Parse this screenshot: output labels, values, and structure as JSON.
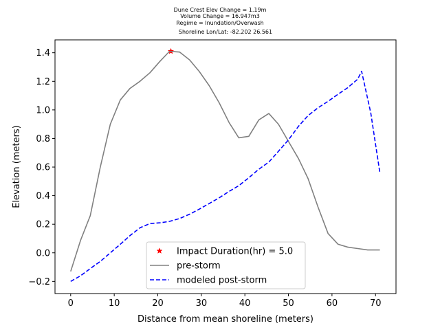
{
  "chart_data": {
    "type": "line",
    "title_lines": [
      "Dune Crest Elev Change = 1.19m",
      "Volume Change = 16.947m3",
      "Regime = Inundation/Overwash",
      "Shoreline Lon/Lat: -82.202 26.561"
    ],
    "xlabel": "Distance from mean shoreline (meters)",
    "ylabel": "Elevation (meters)",
    "xlim": [
      -3.6,
      74.7
    ],
    "ylim": [
      -0.285,
      1.49
    ],
    "xticks": [
      0,
      10,
      20,
      30,
      40,
      50,
      60,
      70
    ],
    "xtick_labels": [
      "0",
      "10",
      "20",
      "30",
      "40",
      "50",
      "60",
      "70"
    ],
    "yticks": [
      -0.2,
      0.0,
      0.2,
      0.4,
      0.6,
      0.8,
      1.0,
      1.2,
      1.4
    ],
    "ytick_labels": [
      "−0.2",
      "0.0",
      "0.2",
      "0.4",
      "0.6",
      "0.8",
      "1.0",
      "1.2",
      "1.4"
    ],
    "grid": false,
    "legend_position": "lower-center",
    "series": [
      {
        "name": "Impact Duration(hr) = 5.0",
        "style": "marker",
        "marker": "star",
        "color": "#ff0000",
        "points": [
          [
            23.0,
            1.41
          ]
        ]
      },
      {
        "name": "pre-storm",
        "style": "solid",
        "color": "#808080",
        "points": [
          [
            0.0,
            -0.13
          ],
          [
            2.3,
            0.09
          ],
          [
            4.5,
            0.26
          ],
          [
            6.8,
            0.6
          ],
          [
            9.1,
            0.9
          ],
          [
            11.4,
            1.07
          ],
          [
            13.6,
            1.15
          ],
          [
            15.9,
            1.2
          ],
          [
            18.2,
            1.26
          ],
          [
            20.5,
            1.34
          ],
          [
            22.7,
            1.41
          ],
          [
            25.0,
            1.405
          ],
          [
            27.3,
            1.35
          ],
          [
            29.5,
            1.27
          ],
          [
            31.8,
            1.17
          ],
          [
            34.1,
            1.05
          ],
          [
            36.4,
            0.91
          ],
          [
            38.6,
            0.805
          ],
          [
            40.9,
            0.815
          ],
          [
            43.2,
            0.93
          ],
          [
            45.5,
            0.975
          ],
          [
            47.7,
            0.9
          ],
          [
            50.0,
            0.78
          ],
          [
            52.3,
            0.66
          ],
          [
            54.5,
            0.52
          ],
          [
            56.8,
            0.32
          ],
          [
            59.1,
            0.135
          ],
          [
            61.4,
            0.06
          ],
          [
            63.6,
            0.04
          ],
          [
            65.9,
            0.03
          ],
          [
            68.2,
            0.02
          ],
          [
            70.5,
            0.02
          ],
          [
            71.0,
            0.02
          ]
        ]
      },
      {
        "name": "modeled post-storm",
        "style": "dashed",
        "color": "#0000ff",
        "points": [
          [
            0.0,
            -0.2
          ],
          [
            2.3,
            -0.16
          ],
          [
            4.5,
            -0.11
          ],
          [
            6.8,
            -0.06
          ],
          [
            9.1,
            0.0
          ],
          [
            11.4,
            0.06
          ],
          [
            13.6,
            0.12
          ],
          [
            15.9,
            0.175
          ],
          [
            18.2,
            0.205
          ],
          [
            20.5,
            0.21
          ],
          [
            22.7,
            0.22
          ],
          [
            25.0,
            0.24
          ],
          [
            27.3,
            0.27
          ],
          [
            29.5,
            0.305
          ],
          [
            31.8,
            0.345
          ],
          [
            34.1,
            0.385
          ],
          [
            36.4,
            0.43
          ],
          [
            38.6,
            0.47
          ],
          [
            40.9,
            0.525
          ],
          [
            43.2,
            0.585
          ],
          [
            45.5,
            0.635
          ],
          [
            47.7,
            0.71
          ],
          [
            50.0,
            0.79
          ],
          [
            52.3,
            0.885
          ],
          [
            54.5,
            0.96
          ],
          [
            56.8,
            1.015
          ],
          [
            59.1,
            1.06
          ],
          [
            61.4,
            1.11
          ],
          [
            63.6,
            1.155
          ],
          [
            65.9,
            1.215
          ],
          [
            66.8,
            1.27
          ],
          [
            68.9,
            0.98
          ],
          [
            71.0,
            0.56
          ]
        ]
      }
    ]
  }
}
